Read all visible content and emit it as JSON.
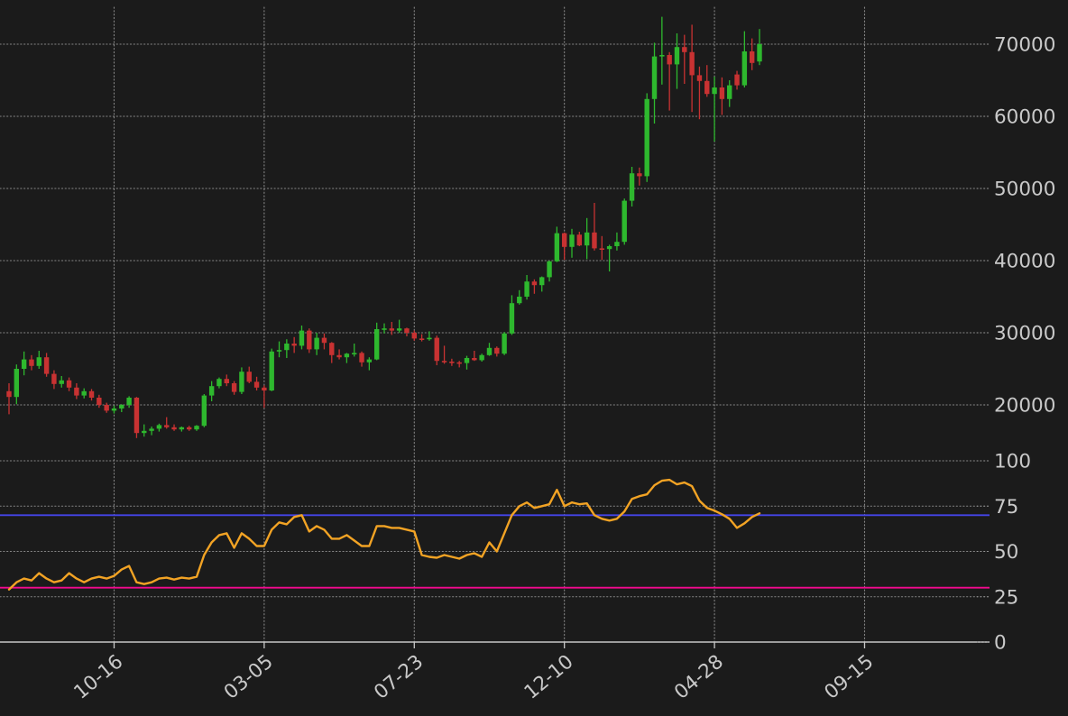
{
  "chart_data": {
    "type": "candlestick",
    "title": "",
    "description": "Dark-themed weekly OHLC candlestick chart with RSI sub-panel",
    "x_axis": {
      "tick_labels": [
        "10-16",
        "03-05",
        "07-23",
        "12-10",
        "04-28",
        "09-15"
      ],
      "tick_week_indices": [
        14,
        34,
        54,
        74,
        94,
        114
      ]
    },
    "price_panel": {
      "tick_labels": [
        "70000",
        "60000",
        "50000",
        "40000",
        "30000",
        "20000"
      ],
      "tick_values": [
        70000,
        60000,
        50000,
        40000,
        30000,
        20000
      ],
      "ylim": [
        13500,
        75000
      ]
    },
    "rsi_panel": {
      "tick_labels": [
        "100",
        "75",
        "50",
        "25",
        "0"
      ],
      "tick_values": [
        100,
        75,
        50,
        25,
        0
      ],
      "overbought_level": 70,
      "oversold_level": 30,
      "ylim": [
        0,
        100
      ]
    },
    "grid": true,
    "legend": "none",
    "candles_ohlc": [
      [
        21900,
        23000,
        18700,
        21100
      ],
      [
        21100,
        25600,
        20100,
        25000
      ],
      [
        25000,
        27400,
        24100,
        26300
      ],
      [
        26300,
        26900,
        24800,
        25400
      ],
      [
        25400,
        27500,
        25000,
        26600
      ],
      [
        26600,
        27200,
        23900,
        24300
      ],
      [
        24300,
        24800,
        22200,
        22900
      ],
      [
        22900,
        24000,
        22400,
        23400
      ],
      [
        23400,
        23800,
        21900,
        22400
      ],
      [
        22400,
        23000,
        20800,
        21300
      ],
      [
        21300,
        22300,
        20900,
        21900
      ],
      [
        21900,
        22200,
        20600,
        21000
      ],
      [
        21000,
        21400,
        19600,
        20000
      ],
      [
        20000,
        20300,
        18900,
        19200
      ],
      [
        19200,
        19900,
        18800,
        19500
      ],
      [
        19500,
        20100,
        19000,
        20000
      ],
      [
        20000,
        21200,
        19600,
        21000
      ],
      [
        21000,
        21100,
        15400,
        16100
      ],
      [
        16100,
        17300,
        15600,
        16400
      ],
      [
        16400,
        17000,
        15800,
        16700
      ],
      [
        16700,
        17400,
        16300,
        17200
      ],
      [
        17200,
        18300,
        16700,
        16900
      ],
      [
        16900,
        17300,
        16400,
        16600
      ],
      [
        16600,
        17000,
        16300,
        16900
      ],
      [
        16900,
        17100,
        16400,
        16600
      ],
      [
        16600,
        17200,
        16400,
        17100
      ],
      [
        17100,
        21500,
        16900,
        21300
      ],
      [
        21300,
        23300,
        20500,
        22600
      ],
      [
        22600,
        23800,
        22300,
        23600
      ],
      [
        23600,
        24200,
        22600,
        23000
      ],
      [
        23000,
        23300,
        21400,
        21800
      ],
      [
        21800,
        25200,
        21500,
        24600
      ],
      [
        24600,
        25300,
        23000,
        23200
      ],
      [
        23200,
        23900,
        22000,
        22400
      ],
      [
        22400,
        22700,
        19600,
        22000
      ],
      [
        22000,
        27800,
        21900,
        27400
      ],
      [
        27400,
        28800,
        26600,
        27600
      ],
      [
        27600,
        29100,
        26500,
        28500
      ],
      [
        28500,
        29400,
        27200,
        28200
      ],
      [
        28200,
        31000,
        27700,
        30300
      ],
      [
        30300,
        30600,
        27200,
        27700
      ],
      [
        27700,
        30000,
        26900,
        29300
      ],
      [
        29300,
        29900,
        27700,
        28600
      ],
      [
        28600,
        28700,
        25800,
        26900
      ],
      [
        26900,
        27700,
        26300,
        26600
      ],
      [
        26600,
        27200,
        25800,
        27100
      ],
      [
        27100,
        28500,
        26700,
        27200
      ],
      [
        27200,
        27400,
        25300,
        25900
      ],
      [
        25900,
        26600,
        24800,
        26300
      ],
      [
        26300,
        31400,
        26200,
        30500
      ],
      [
        30500,
        31300,
        29900,
        30600
      ],
      [
        30600,
        31500,
        29700,
        30300
      ],
      [
        30300,
        31800,
        30000,
        30600
      ],
      [
        30600,
        30700,
        29500,
        30000
      ],
      [
        30000,
        30300,
        28900,
        29200
      ],
      [
        29200,
        29800,
        28800,
        29100
      ],
      [
        29100,
        30200,
        28900,
        29300
      ],
      [
        29300,
        29600,
        25500,
        26100
      ],
      [
        26100,
        28200,
        25700,
        26000
      ],
      [
        26000,
        26400,
        25400,
        25900
      ],
      [
        25900,
        26100,
        25200,
        25800
      ],
      [
        25800,
        26800,
        24900,
        26500
      ],
      [
        26500,
        27500,
        26100,
        26200
      ],
      [
        26200,
        27100,
        26000,
        26900
      ],
      [
        26900,
        28600,
        26800,
        27900
      ],
      [
        27900,
        28100,
        26700,
        27100
      ],
      [
        27100,
        30100,
        26900,
        29900
      ],
      [
        29900,
        35200,
        29700,
        34100
      ],
      [
        34100,
        35900,
        33900,
        35000
      ],
      [
        35000,
        38000,
        34600,
        37100
      ],
      [
        37100,
        37400,
        35400,
        36600
      ],
      [
        36600,
        37800,
        35700,
        37700
      ],
      [
        37700,
        40000,
        37100,
        39900
      ],
      [
        39900,
        44700,
        39800,
        43800
      ],
      [
        43800,
        43900,
        40100,
        41900
      ],
      [
        41900,
        44400,
        40400,
        43600
      ],
      [
        43600,
        44000,
        42000,
        42100
      ],
      [
        42100,
        45900,
        40200,
        43900
      ],
      [
        43900,
        48000,
        41400,
        41700
      ],
      [
        41700,
        43400,
        40100,
        41600
      ],
      [
        41600,
        42200,
        38500,
        42000
      ],
      [
        42000,
        43900,
        41400,
        42600
      ],
      [
        42600,
        48600,
        42200,
        48300
      ],
      [
        48300,
        53000,
        47500,
        52100
      ],
      [
        52100,
        52900,
        50400,
        51700
      ],
      [
        51700,
        63200,
        50900,
        62400
      ],
      [
        62400,
        70200,
        59000,
        68300
      ],
      [
        68300,
        73800,
        64400,
        68500
      ],
      [
        68500,
        68900,
        60800,
        67200
      ],
      [
        67200,
        71500,
        63800,
        69600
      ],
      [
        69600,
        71300,
        64500,
        68900
      ],
      [
        68900,
        72700,
        60600,
        65700
      ],
      [
        65700,
        66900,
        59600,
        64900
      ],
      [
        64900,
        67100,
        62700,
        63100
      ],
      [
        63100,
        65500,
        56500,
        64000
      ],
      [
        64000,
        65400,
        60200,
        62400
      ],
      [
        62400,
        65000,
        61300,
        64300
      ],
      [
        65800,
        66300,
        63700,
        64300
      ],
      [
        64300,
        71800,
        64000,
        69000
      ],
      [
        69000,
        70800,
        66400,
        67400
      ],
      [
        67600,
        72100,
        67100,
        70000
      ]
    ],
    "rsi_values": [
      29,
      33,
      35,
      34,
      38,
      35,
      33,
      34,
      38,
      35,
      33,
      35,
      36,
      35,
      36.5,
      40,
      42,
      33,
      32,
      33,
      35,
      35.5,
      34.5,
      35.5,
      35,
      36,
      48,
      55,
      59,
      60,
      52,
      60,
      57,
      53,
      53,
      62,
      66,
      65,
      69,
      70,
      61,
      64,
      62,
      57,
      57,
      59,
      56,
      53,
      53,
      64,
      64,
      63,
      63,
      62,
      61,
      48,
      47,
      46.5,
      48,
      47,
      46,
      48,
      49,
      47,
      55,
      50,
      60,
      70,
      75,
      77,
      74,
      75,
      76,
      84,
      75,
      77,
      76,
      76.5,
      70,
      68,
      67,
      68,
      72,
      79,
      80.5,
      81.5,
      86.5,
      89,
      89.5,
      87,
      88,
      86,
      78,
      74,
      72.5,
      70.5,
      68,
      63,
      65.5,
      69,
      71
    ],
    "colors": {
      "background": "#1b1b1b",
      "candle_up": "#2eb82e",
      "candle_down": "#c83232",
      "rsi_line": "#f2a324",
      "overbought_line": "#4545e8",
      "oversold_line": "#f20a8e",
      "grid": "#989898",
      "axis_line": "#c8c8c8",
      "tick_label": "#c9c9c9"
    }
  }
}
